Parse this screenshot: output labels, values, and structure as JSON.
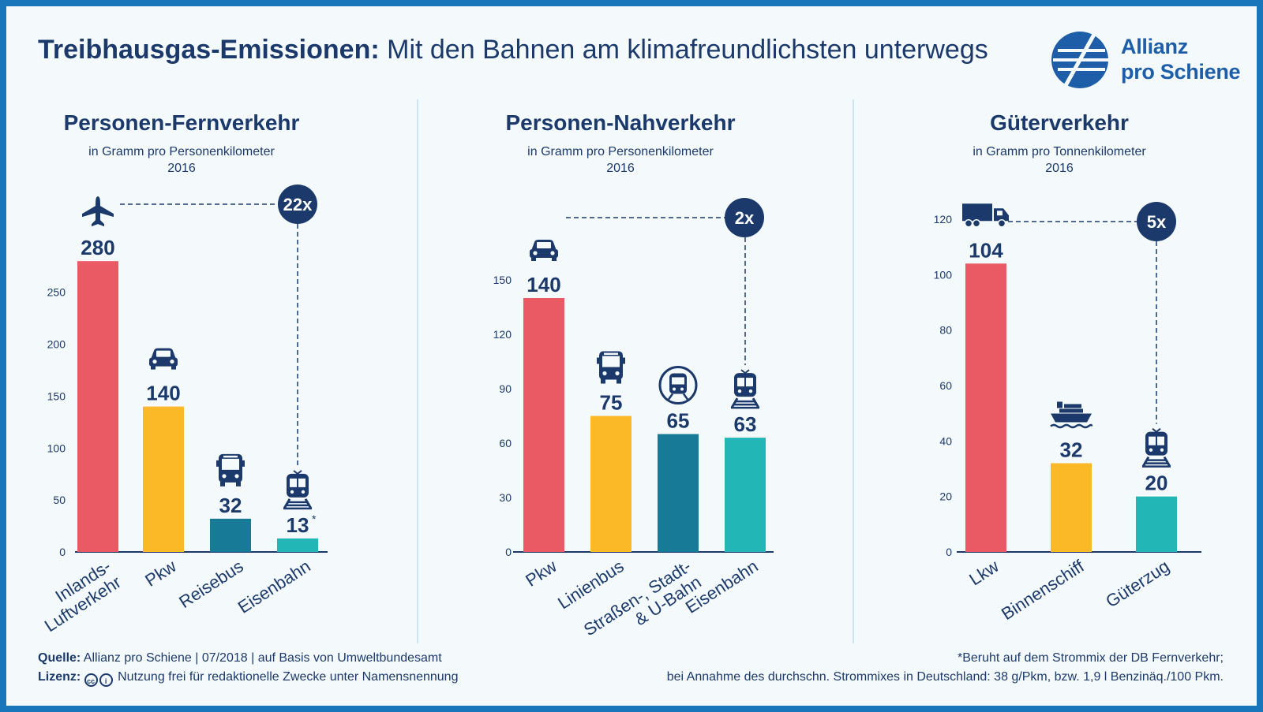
{
  "title": {
    "bold": "Treibhausgas-Emissionen:",
    "light": "Mit den Bahnen am klimafreundlichsten unterwegs"
  },
  "logo": {
    "line1": "Allianz",
    "line2": "pro Schiene"
  },
  "colors": {
    "red": "#ea5a64",
    "yellow": "#fbb827",
    "petrol": "#177a96",
    "teal": "#22b7b6",
    "navy": "#1b3a6b"
  },
  "chart_data": [
    {
      "type": "bar",
      "title": "Personen-Fernverkehr",
      "subtitle": "in Gramm pro Personenkilometer",
      "year": "2016",
      "categories": [
        "Inlands-\nLuftverkehr",
        "Pkw",
        "Reisebus",
        "Eisenbahn"
      ],
      "values": [
        280,
        140,
        32,
        13
      ],
      "value_labels": [
        "280",
        "140",
        "32",
        "13"
      ],
      "footnote_marker": "*",
      "icons": [
        "airplane-icon",
        "car-icon",
        "bus-icon",
        "train-icon"
      ],
      "colors": [
        "#ea5a64",
        "#fbb827",
        "#177a96",
        "#22b7b6"
      ],
      "yticks": [
        0,
        50,
        100,
        150,
        200,
        250
      ],
      "ylim": [
        0,
        290
      ],
      "comparison": "22x"
    },
    {
      "type": "bar",
      "title": "Personen-Nahverkehr",
      "subtitle": "in Gramm pro Personenkilometer",
      "year": "2016",
      "categories": [
        "Pkw",
        "Linienbus",
        "Straßen-, Stadt-\n& U-Bahn",
        "Eisenbahn"
      ],
      "values": [
        140,
        75,
        65,
        63
      ],
      "value_labels": [
        "140",
        "75",
        "65",
        "63"
      ],
      "icons": [
        "car-icon",
        "bus-icon",
        "metro-icon",
        "train-icon"
      ],
      "colors": [
        "#ea5a64",
        "#fbb827",
        "#177a96",
        "#22b7b6"
      ],
      "yticks": [
        0,
        30,
        60,
        90,
        120,
        150
      ],
      "ylim": [
        0,
        160
      ],
      "comparison": "2x"
    },
    {
      "type": "bar",
      "title": "Güterverkehr",
      "subtitle": "in Gramm pro Tonnenkilometer",
      "year": "2016",
      "categories": [
        "Lkw",
        "Binnenschiff",
        "Güterzug"
      ],
      "values": [
        104,
        32,
        20
      ],
      "value_labels": [
        "104",
        "32",
        "20"
      ],
      "icons": [
        "truck-icon",
        "ship-icon",
        "train-icon"
      ],
      "colors": [
        "#ea5a64",
        "#fbb827",
        "#22b7b6"
      ],
      "yticks": [
        0,
        20,
        40,
        60,
        80,
        100,
        120
      ],
      "ylim": [
        0,
        120
      ],
      "comparison": "5x"
    }
  ],
  "footer": {
    "source_label": "Quelle:",
    "source_text": "Allianz pro Schiene | 07/2018 | auf Basis von Umweltbundesamt",
    "license_label": "Lizenz:",
    "license_text": "Nutzung frei für redaktionelle Zwecke unter Namensnennung",
    "note_line1": "*Beruht auf dem Strommix der DB Fernverkehr;",
    "note_line2": "bei Annahme des durchschn. Strommixes in Deutschland: 38 g/Pkm, bzw. 1,9 l Benzinäq./100 Pkm."
  }
}
